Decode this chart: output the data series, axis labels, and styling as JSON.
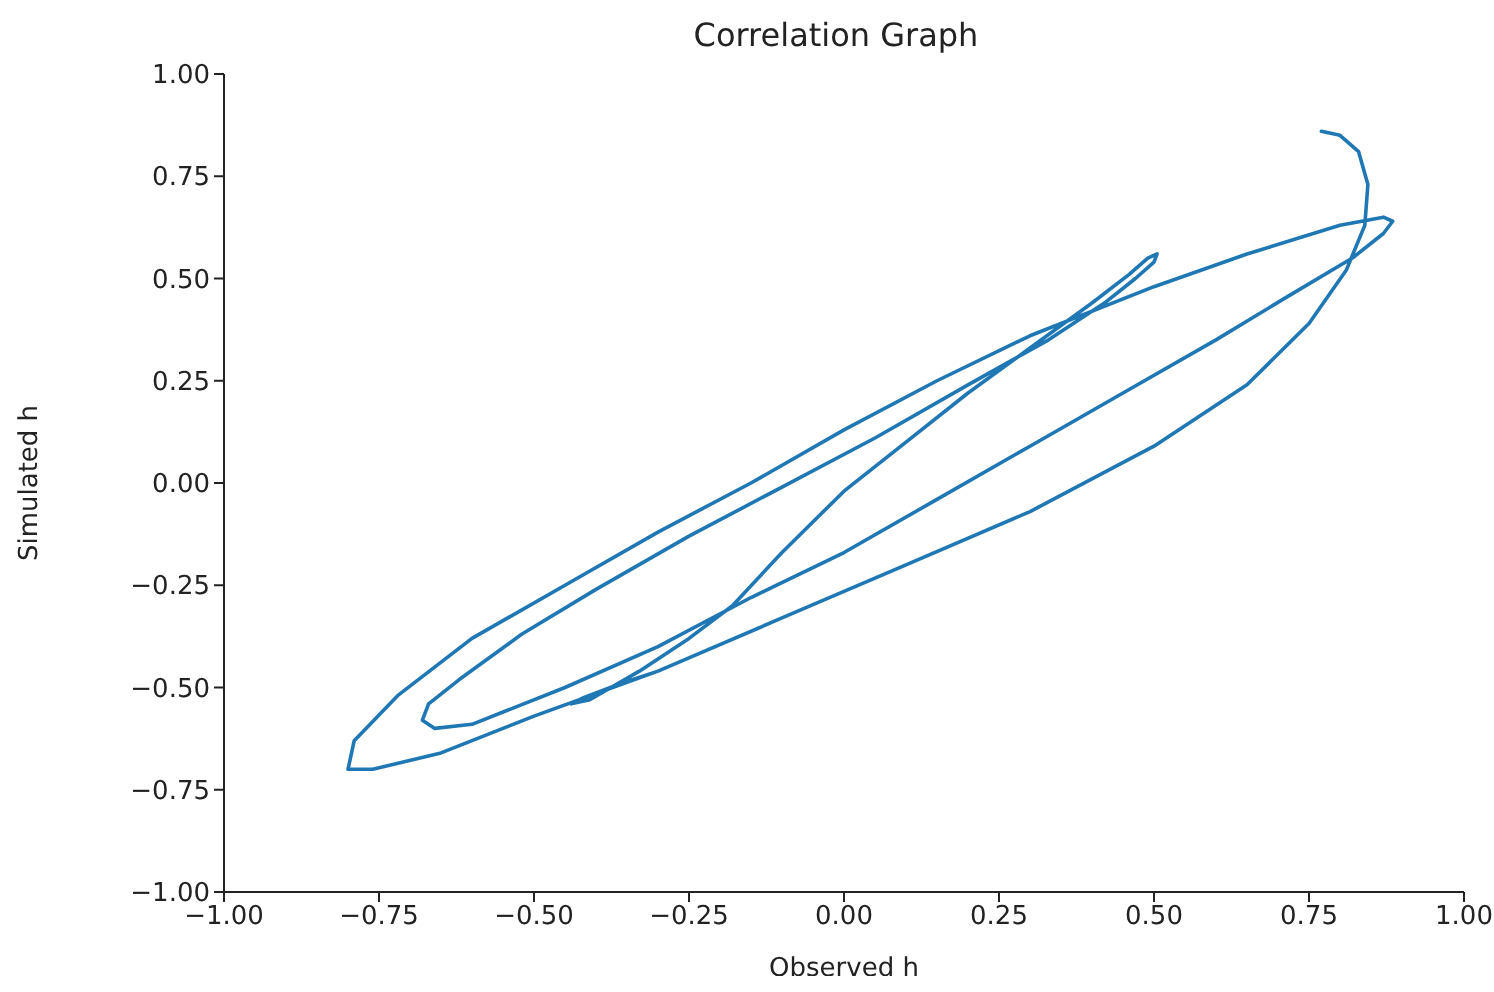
{
  "chart_data": {
    "type": "line",
    "title": "Correlation Graph",
    "xlabel": "Observed h",
    "ylabel": "Simulated h",
    "xlim": [
      -1,
      1
    ],
    "ylim": [
      -1,
      1
    ],
    "xticks": [
      {
        "value": -1,
        "label": "−1.00"
      },
      {
        "value": -0.75,
        "label": "−0.75"
      },
      {
        "value": -0.5,
        "label": "−0.50"
      },
      {
        "value": -0.25,
        "label": "−0.25"
      },
      {
        "value": 0,
        "label": "0.00"
      },
      {
        "value": 0.25,
        "label": "0.25"
      },
      {
        "value": 0.5,
        "label": "0.50"
      },
      {
        "value": 0.75,
        "label": "0.75"
      },
      {
        "value": 1,
        "label": "1.00"
      }
    ],
    "yticks": [
      {
        "value": -1,
        "label": "−1.00"
      },
      {
        "value": -0.75,
        "label": "−0.75"
      },
      {
        "value": -0.5,
        "label": "−0.50"
      },
      {
        "value": -0.25,
        "label": "−0.25"
      },
      {
        "value": 0,
        "label": "0.00"
      },
      {
        "value": 0.25,
        "label": "0.25"
      },
      {
        "value": 0.5,
        "label": "0.50"
      },
      {
        "value": 0.75,
        "label": "0.75"
      },
      {
        "value": 1,
        "label": "1.00"
      }
    ],
    "grid": false,
    "legend": false,
    "marker": "none",
    "line_style": "solid",
    "series": [
      {
        "color": "#1f77b4",
        "x": [
          -0.3,
          -0.36,
          -0.42,
          -0.44,
          -0.41,
          -0.33,
          -0.25,
          -0.18,
          -0.1,
          0.0,
          0.1,
          0.2,
          0.3,
          0.4,
          0.46,
          0.49,
          0.505,
          0.5,
          0.47,
          0.42,
          0.33,
          0.2,
          0.05,
          -0.1,
          -0.25,
          -0.4,
          -0.52,
          -0.62,
          -0.67,
          -0.68,
          -0.66,
          -0.6,
          -0.45,
          -0.3,
          -0.15,
          0.0,
          0.15,
          0.3,
          0.45,
          0.6,
          0.72,
          0.82,
          0.87,
          0.885,
          0.87,
          0.8,
          0.65,
          0.5,
          0.3,
          0.15,
          0.0,
          -0.15,
          -0.3,
          -0.45,
          -0.6,
          -0.72,
          -0.79,
          -0.8,
          -0.76,
          -0.65,
          -0.5,
          -0.3,
          -0.1,
          0.1,
          0.3,
          0.5,
          0.65,
          0.75,
          0.81,
          0.84,
          0.845,
          0.83,
          0.8,
          0.77
        ],
        "values": [
          -0.46,
          -0.49,
          -0.525,
          -0.54,
          -0.53,
          -0.46,
          -0.38,
          -0.3,
          -0.17,
          -0.02,
          0.1,
          0.22,
          0.33,
          0.44,
          0.51,
          0.55,
          0.56,
          0.54,
          0.5,
          0.44,
          0.35,
          0.24,
          0.11,
          -0.01,
          -0.13,
          -0.26,
          -0.37,
          -0.48,
          -0.54,
          -0.58,
          -0.6,
          -0.59,
          -0.5,
          -0.4,
          -0.28,
          -0.17,
          -0.04,
          0.09,
          0.22,
          0.35,
          0.46,
          0.55,
          0.61,
          0.64,
          0.65,
          0.63,
          0.56,
          0.48,
          0.36,
          0.25,
          0.13,
          0.0,
          -0.12,
          -0.25,
          -0.38,
          -0.52,
          -0.63,
          -0.7,
          -0.7,
          -0.66,
          -0.57,
          -0.46,
          -0.33,
          -0.2,
          -0.07,
          0.09,
          0.24,
          0.39,
          0.52,
          0.63,
          0.73,
          0.81,
          0.85,
          0.86
        ]
      }
    ]
  }
}
